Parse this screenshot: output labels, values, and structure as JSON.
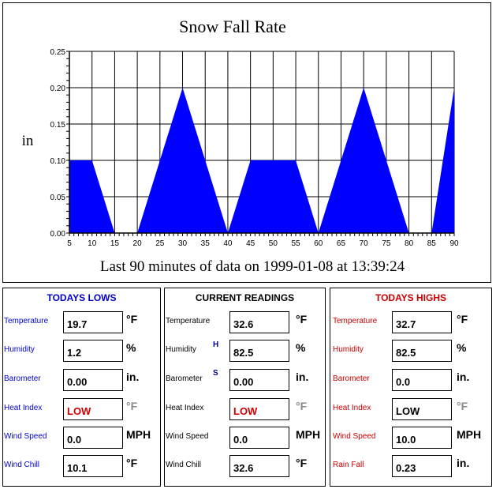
{
  "chart_data": {
    "type": "area",
    "title": "Snow Fall Rate",
    "ylabel": "in",
    "xlabel": "Last 90 minutes of data on 1999-01-08 at 13:39:24",
    "x": [
      5,
      10,
      15,
      20,
      25,
      30,
      35,
      40,
      45,
      50,
      55,
      60,
      65,
      70,
      75,
      80,
      85,
      90
    ],
    "values": [
      0.1,
      0.1,
      0.0,
      0.0,
      0.1,
      0.2,
      0.1,
      0.0,
      0.1,
      0.1,
      0.1,
      0.0,
      0.1,
      0.2,
      0.1,
      0.0,
      0.0,
      0.2
    ],
    "xlim": [
      5,
      90
    ],
    "ylim": [
      0,
      0.25
    ],
    "xticks": [
      "5",
      "10",
      "15",
      "20",
      "25",
      "30",
      "35",
      "40",
      "45",
      "50",
      "55",
      "60",
      "65",
      "70",
      "75",
      "80",
      "85",
      "90"
    ],
    "yticks": [
      "0.00",
      "0.05",
      "0.10",
      "0.15",
      "0.20",
      "0.25"
    ],
    "grid": true,
    "fill_color": "#0000ff"
  },
  "panels": {
    "lows": {
      "title": "TODAYS LOWS",
      "title_color": "#0000cc",
      "label_color": "#0000cc",
      "rows": [
        {
          "label": "Temperature",
          "value": "19.7",
          "unit": "°F"
        },
        {
          "label": "Humidity",
          "value": "1.2",
          "unit": "%"
        },
        {
          "label": "Barometer",
          "value": "0.00",
          "unit": "in."
        },
        {
          "label": "Heat Index",
          "value": "LOW",
          "unit": "°F"
        },
        {
          "label": "Wind Speed",
          "value": "0.0",
          "unit": "MPH"
        },
        {
          "label": "Wind Chill",
          "value": "10.1",
          "unit": "°F"
        }
      ]
    },
    "current": {
      "title": "CURRENT READINGS",
      "title_color": "#000000",
      "label_color": "#000000",
      "hs": [
        "H",
        "S"
      ],
      "rows": [
        {
          "label": "Temperature",
          "value": "32.6",
          "unit": "°F"
        },
        {
          "label": "Humidity",
          "value": "82.5",
          "unit": "%"
        },
        {
          "label": "Barometer",
          "value": "0.00",
          "unit": "in."
        },
        {
          "label": "Heat Index",
          "value": "LOW",
          "unit": "°F"
        },
        {
          "label": "Wind Speed",
          "value": "0.0",
          "unit": "MPH"
        },
        {
          "label": "Wind Chill",
          "value": "32.6",
          "unit": "°F"
        }
      ]
    },
    "highs": {
      "title": "TODAYS HIGHS",
      "title_color": "#cc0000",
      "label_color": "#cc0000",
      "rows": [
        {
          "label": "Temperature",
          "value": "32.7",
          "unit": "°F"
        },
        {
          "label": "Humidity",
          "value": "82.5",
          "unit": "%"
        },
        {
          "label": "Barometer",
          "value": "0.0",
          "unit": "in."
        },
        {
          "label": "Heat Index",
          "value": "LOW",
          "unit": "°F"
        },
        {
          "label": "Wind Speed",
          "value": "10.0",
          "unit": "MPH"
        },
        {
          "label": "Rain Fall",
          "value": "0.23",
          "unit": "in."
        }
      ]
    }
  }
}
